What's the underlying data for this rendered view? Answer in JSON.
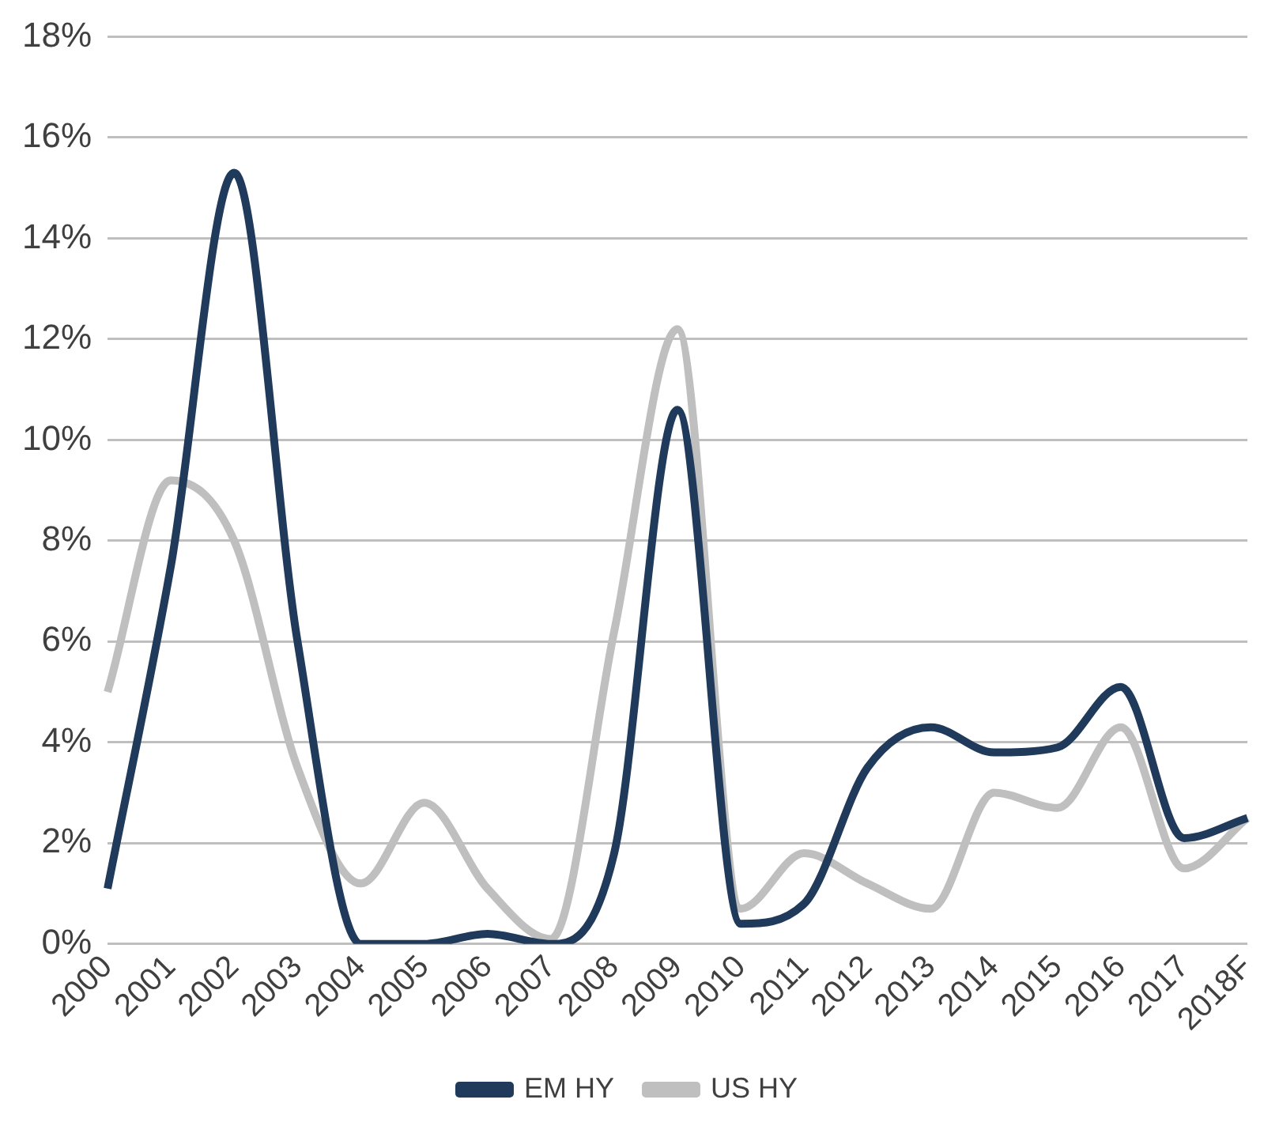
{
  "chart_data": {
    "type": "line",
    "categories": [
      "2000",
      "2001",
      "2002",
      "2003",
      "2004",
      "2005",
      "2006",
      "2007",
      "2008",
      "2009",
      "2010",
      "2011",
      "2012",
      "2013",
      "2014",
      "2015",
      "2016",
      "2017",
      "2018F"
    ],
    "series": [
      {
        "name": "EM HY",
        "color": "#1f3a5a",
        "values": [
          1.1,
          7.5,
          15.3,
          6.0,
          0.0,
          0.0,
          0.2,
          0.0,
          1.8,
          10.6,
          0.4,
          0.8,
          3.5,
          4.3,
          3.8,
          3.9,
          5.1,
          2.1,
          2.5
        ]
      },
      {
        "name": "US HY",
        "color": "#bfbfbf",
        "values": [
          5.0,
          9.2,
          8.0,
          3.5,
          1.2,
          2.8,
          1.1,
          0.1,
          6.2,
          12.2,
          0.7,
          1.8,
          1.2,
          0.7,
          3.0,
          2.7,
          4.3,
          1.5,
          2.5
        ]
      }
    ],
    "ylim": [
      0,
      18
    ],
    "yticks": [
      {
        "value": 0,
        "label": "0%"
      },
      {
        "value": 2,
        "label": "2%"
      },
      {
        "value": 4,
        "label": "4%"
      },
      {
        "value": 6,
        "label": "6%"
      },
      {
        "value": 8,
        "label": "8%"
      },
      {
        "value": 10,
        "label": "10%"
      },
      {
        "value": 12,
        "label": "12%"
      },
      {
        "value": 14,
        "label": "14%"
      },
      {
        "value": 16,
        "label": "16%"
      },
      {
        "value": 18,
        "label": "18%"
      }
    ],
    "grid": "y",
    "legend": "bottom",
    "marker": "none",
    "line_style": "solid"
  }
}
